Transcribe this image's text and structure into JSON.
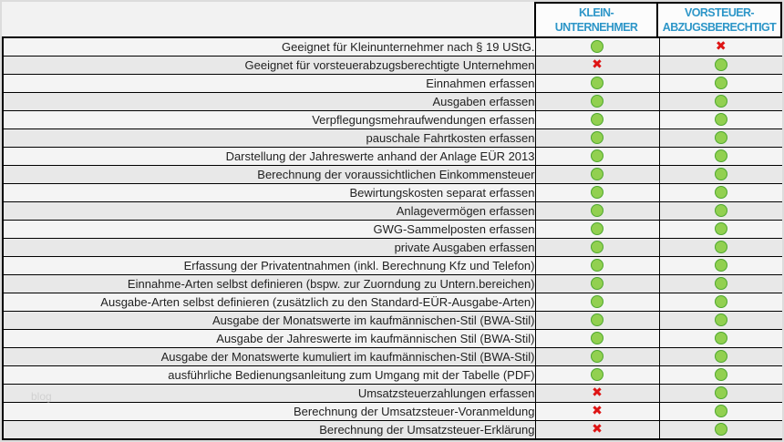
{
  "colors": {
    "page-bg": "#F2F2F2",
    "outer-border": "#DCDCDC",
    "grid": "#000000",
    "row-light": "#F4F4F4",
    "row-dark": "#E8E8E8",
    "header-bg": "#FCFCFC",
    "header-blue": "#2D96C8",
    "green-fill": "#92D050",
    "green-border": "#4EA72E",
    "red": "#DE1414",
    "label-text": "#222222",
    "watermark-color": "#CDCDCD"
  },
  "header": {
    "columns": [
      {
        "line1": "KLEIN-",
        "line2": "UNTERNEHMER"
      },
      {
        "line1": "VORSTEUER-",
        "line2": "ABZUGSBERECHTIGT"
      }
    ]
  },
  "marks": {
    "yes_icon": "green-dot",
    "no_icon": "red-cross",
    "no_glyph": "✖"
  },
  "watermark": "blog",
  "chart_data": {
    "type": "table",
    "title": "",
    "columns": [
      "",
      "KLEIN-UNTERNEHMER",
      "VORSTEUER-ABZUGSBERECHTIGT"
    ],
    "rows": [
      [
        "Geeignet für Kleinunternehmer nach § 19 UStG.",
        "yes",
        "no"
      ],
      [
        "Geeignet für vorsteuerabzugsberechtigte Unternehmen",
        "no",
        "yes"
      ],
      [
        "Einnahmen erfassen",
        "yes",
        "yes"
      ],
      [
        "Ausgaben erfassen",
        "yes",
        "yes"
      ],
      [
        "Verpflegungsmehraufwendungen erfassen",
        "yes",
        "yes"
      ],
      [
        "pauschale Fahrtkosten erfassen",
        "yes",
        "yes"
      ],
      [
        "Darstellung der Jahreswerte anhand der Anlage EÜR 2013",
        "yes",
        "yes"
      ],
      [
        "Berechnung der voraussichtlichen Einkommensteuer",
        "yes",
        "yes"
      ],
      [
        "Bewirtungskosten separat erfassen",
        "yes",
        "yes"
      ],
      [
        "Anlagevermögen erfassen",
        "yes",
        "yes"
      ],
      [
        "GWG-Sammelposten erfassen",
        "yes",
        "yes"
      ],
      [
        "private Ausgaben erfassen",
        "yes",
        "yes"
      ],
      [
        "Erfassung der Privatentnahmen (inkl. Berechnung Kfz und Telefon)",
        "yes",
        "yes"
      ],
      [
        "Einnahme-Arten selbst definieren (bspw. zur Zuorndung zu Untern.bereichen)",
        "yes",
        "yes"
      ],
      [
        "Ausgabe-Arten selbst definieren (zusätzlich zu den Standard-EÜR-Ausgabe-Arten)",
        "yes",
        "yes"
      ],
      [
        "Ausgabe der Monatswerte im kaufmännischen-Stil (BWA-Stil)",
        "yes",
        "yes"
      ],
      [
        "Ausgabe der Jahreswerte im kaufmännischen Stil (BWA-Stil)",
        "yes",
        "yes"
      ],
      [
        "Ausgabe der Monatswerte kumuliert im kaufmännischen-Stil (BWA-Stil)",
        "yes",
        "yes"
      ],
      [
        "ausführliche Bedienungsanleitung zum Umgang mit der Tabelle (PDF)",
        "yes",
        "yes"
      ],
      [
        "Umsatzsteuerzahlungen erfassen",
        "no",
        "yes"
      ],
      [
        "Berechnung der Umsatzsteuer-Voranmeldung",
        "no",
        "yes"
      ],
      [
        "Berechnung der Umsatzsteuer-Erklärung",
        "no",
        "yes"
      ]
    ]
  }
}
